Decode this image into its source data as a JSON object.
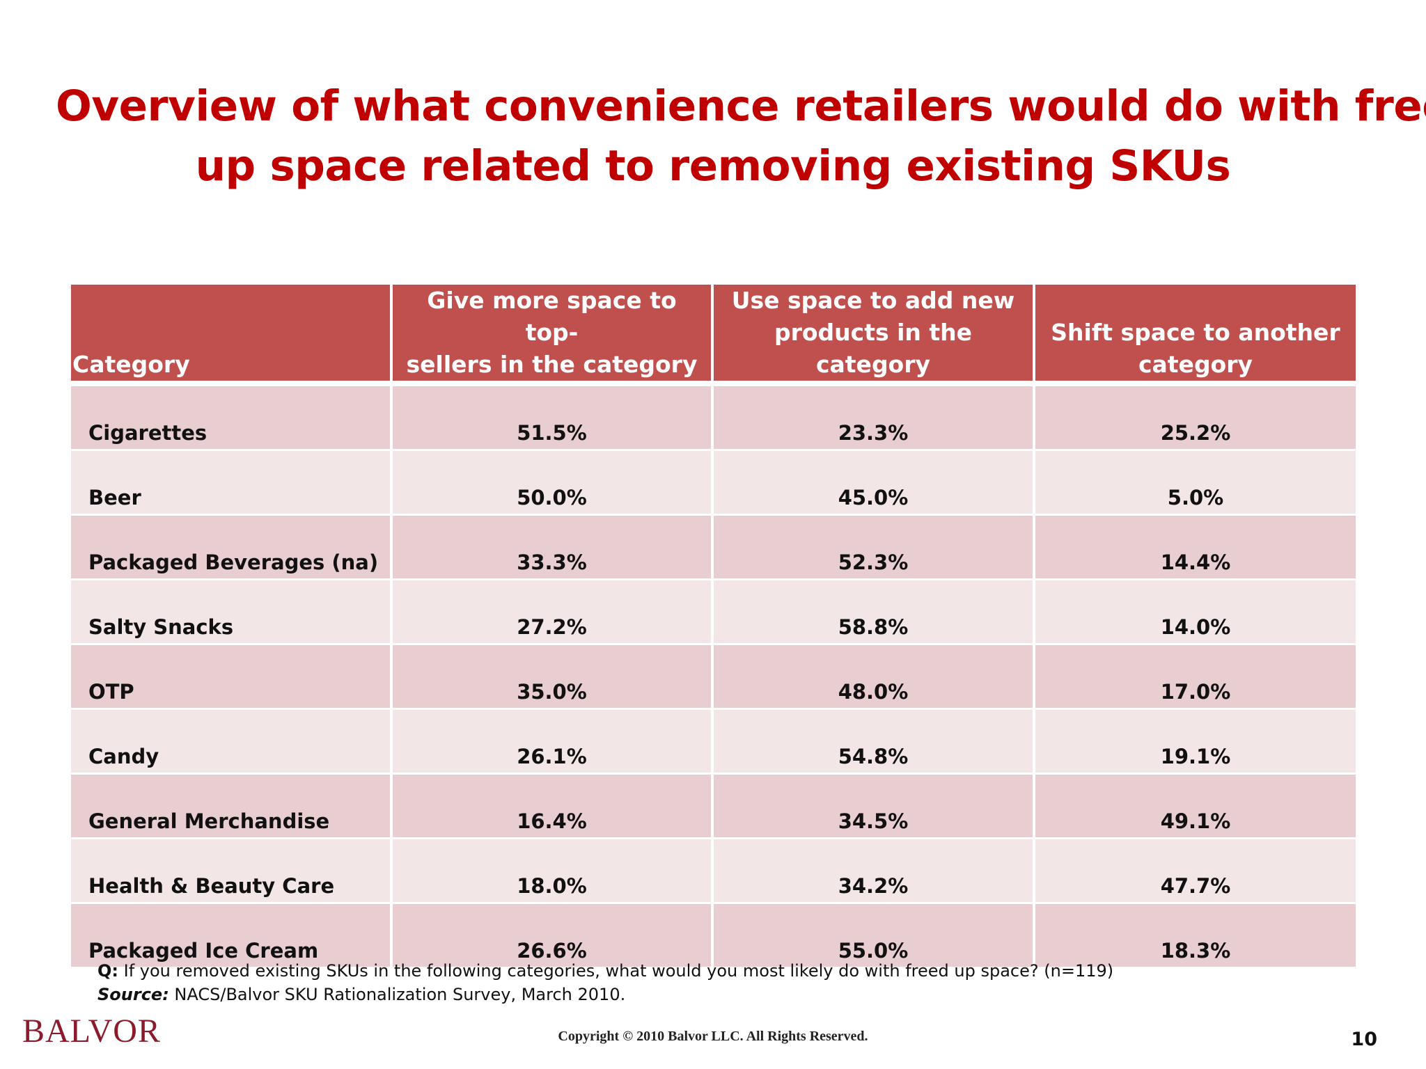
{
  "title": {
    "line1": "Overview of what convenience retailers would do with freed",
    "line2": "up space related to removing existing SKUs"
  },
  "table": {
    "headers": [
      [
        "Category"
      ],
      [
        "Give more space to top-",
        "sellers in the category"
      ],
      [
        "Use space to add new",
        "products in the category"
      ],
      [
        "Shift space to another",
        "category"
      ]
    ],
    "rows": [
      [
        "Cigarettes",
        "51.5%",
        "23.3%",
        "25.2%"
      ],
      [
        "Beer",
        "50.0%",
        "45.0%",
        "5.0%"
      ],
      [
        "Packaged Beverages (na)",
        "33.3%",
        "52.3%",
        "14.4%"
      ],
      [
        "Salty Snacks",
        "27.2%",
        "58.8%",
        "14.0%"
      ],
      [
        "OTP",
        "35.0%",
        "48.0%",
        "17.0%"
      ],
      [
        "Candy",
        "26.1%",
        "54.8%",
        "19.1%"
      ],
      [
        "General Merchandise",
        "16.4%",
        "34.5%",
        "49.1%"
      ],
      [
        "Health & Beauty Care",
        "18.0%",
        "34.2%",
        "47.7%"
      ],
      [
        "Packaged Ice Cream",
        "26.6%",
        "55.0%",
        "18.3%"
      ]
    ]
  },
  "footnote": {
    "question_label": "Q:",
    "question_text": " If you removed existing SKUs in the following categories, what would you most likely do with freed up space? (n=119)",
    "source_label": "Source:",
    "source_text": " NACS/Balvor SKU Rationalization Survey, March 2010."
  },
  "footer": {
    "logo": "BALVOR",
    "copyright": "Copyright © 2010 Balvor LLC. All Rights Reserved.",
    "page_number": "10"
  },
  "colors": {
    "title": "#c00000",
    "header_fill": "#c0504d",
    "row_odd": "#e8cdd1",
    "row_even": "#f3e6e7",
    "logo": "#8b1a2b"
  }
}
